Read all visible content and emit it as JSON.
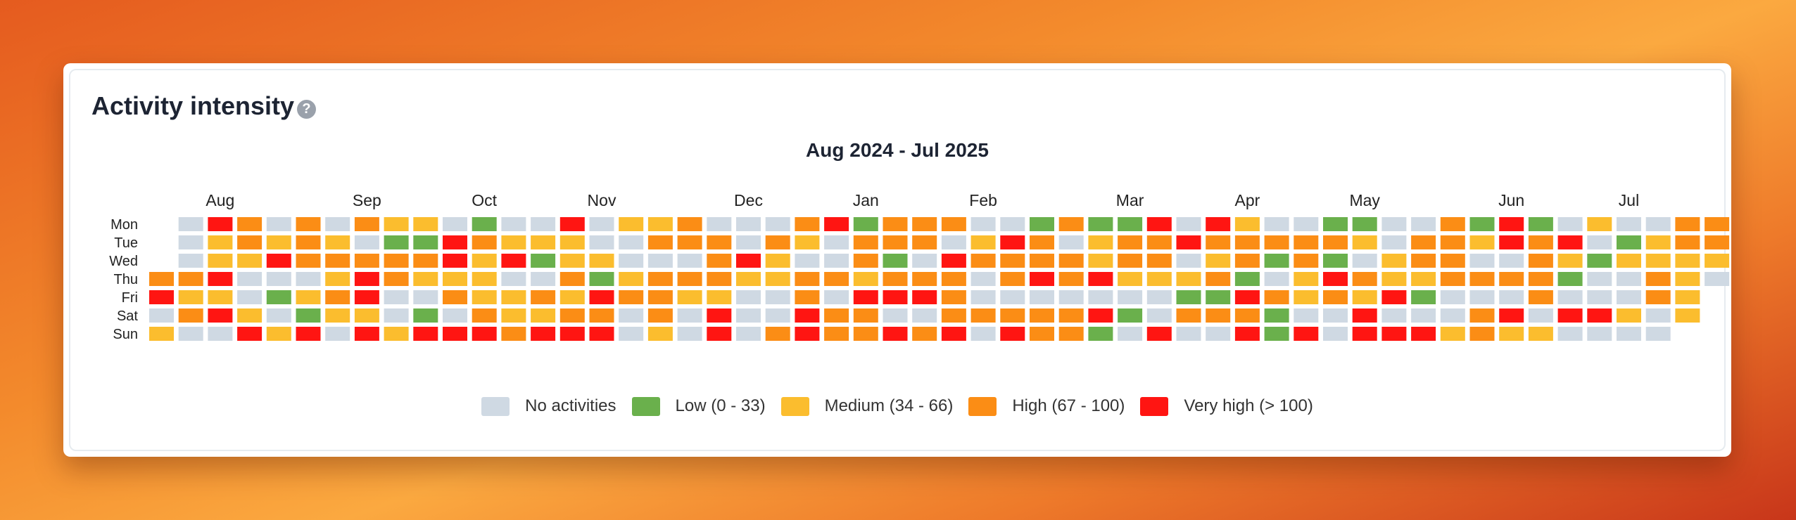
{
  "card": {
    "title": "Activity intensity",
    "help_icon": "question-circle-icon"
  },
  "chart_data": {
    "type": "heatmap",
    "title": "Aug 2024 - Jul 2025",
    "rows": [
      "Mon",
      "Tue",
      "Wed",
      "Thu",
      "Fri",
      "Sat",
      "Sun"
    ],
    "months": [
      {
        "label": "Aug",
        "week": 2
      },
      {
        "label": "Sep",
        "week": 7
      },
      {
        "label": "Oct",
        "week": 11
      },
      {
        "label": "Nov",
        "week": 15
      },
      {
        "label": "Dec",
        "week": 20
      },
      {
        "label": "Jan",
        "week": 24
      },
      {
        "label": "Feb",
        "week": 28
      },
      {
        "label": "Mar",
        "week": 33
      },
      {
        "label": "Apr",
        "week": 37
      },
      {
        "label": "May",
        "week": 41
      },
      {
        "label": "Jun",
        "week": 46
      },
      {
        "label": "Jul",
        "week": 50
      }
    ],
    "categories": [
      {
        "key": "N",
        "label": "No activities",
        "color": "#cfd9e3"
      },
      {
        "key": "L",
        "label": "Low (0 - 33)",
        "color": "#6ab04c"
      },
      {
        "key": "M",
        "label": "Medium (34 - 66)",
        "color": "#fbbd2e"
      },
      {
        "key": "H",
        "label": "High (67 - 100)",
        "color": "#fb8d15"
      },
      {
        "key": "V",
        "label": "Very high (> 100)",
        "color": "#ff1512"
      }
    ],
    "weeks": [
      "...HVNM.",
      "NNNHMHN",
      "VMMVMVN",
      "HHMNNMV",
      "NMVNLNM",
      "HHHNMLV",
      "NMHMHMN",
      "HNHVVMV",
      "MLHHNNM",
      "MLHMNLV",
      "NVVMHNV",
      "LHMMMHV",
      "NMVNMMH",
      "NMLNHMV",
      "VMMHMHV",
      "NNMLVHV",
      "MNNMHNN",
      "MHNHHHM",
      "HHNHMNN",
      "NHHHMVV",
      "NNVMNNN",
      "NHMMNNH",
      "HMNHHVV",
      "VNNHNHH",
      "LHHMVHH",
      "HHLHVNV",
      "HHNHVNH",
      "HNVHHHV",
      "NMHNNHN",
      "NVHHNHV",
      "LHHVNHH",
      "HNHHNHH",
      "LMMVNVL",
      "LHHMNLN",
      "VHHMNNV",
      "NVNMLHN",
      "VHMHLHN",
      "MHHLVHV",
      "NHLNHLL",
      "NHHMMNV",
      "LHLVHNN",
      "LMNHMVV",
      "NNMMVNV",
      "NHHMLNV",
      "HHHHNNM",
      "LMNHNHH",
      "VVNHNVM",
      "LHHHHNM",
      "NVMLNVN",
      "MNLNNVN",
      "NLMNNMN",
      "NMMHHNN",
      "HHMMMM.",
      "HHMN..."
    ]
  }
}
